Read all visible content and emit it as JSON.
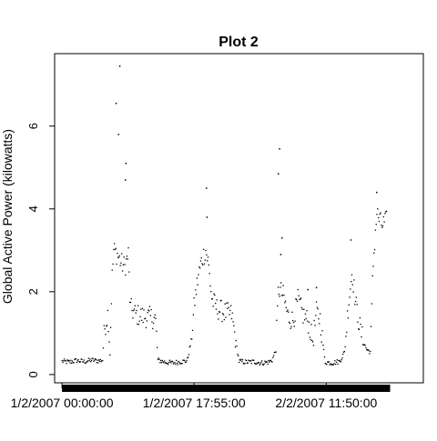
{
  "chart_data": {
    "type": "scatter",
    "title": "Plot 2",
    "xlabel": "",
    "ylabel": "Global Active Power (kilowatts)",
    "xlim": [
      -60,
      2940
    ],
    "ylim": [
      -0.2,
      7.75
    ],
    "x_ticks": [
      {
        "value": 0,
        "label": "1/2/2007 00:00:00"
      },
      {
        "value": 1075,
        "label": "1/2/2007 17:55:00"
      },
      {
        "value": 2150,
        "label": "2/2/2007 11:50:00"
      }
    ],
    "y_ticks": [
      {
        "value": 0,
        "label": "0"
      },
      {
        "value": 2,
        "label": "2"
      },
      {
        "value": 4,
        "label": "4"
      },
      {
        "value": 6,
        "label": "6"
      }
    ],
    "grid": false,
    "legend": "none",
    "point_color": "#000000",
    "x_rug": "dense black band below x axis",
    "series": [
      {
        "profile": [
          [
            0,
            0.32
          ],
          [
            60,
            0.3
          ],
          [
            120,
            0.34
          ],
          [
            180,
            0.31
          ],
          [
            240,
            0.35
          ],
          [
            300,
            0.33
          ],
          [
            330,
            0.35
          ],
          [
            345,
            1.1
          ],
          [
            375,
            1.5
          ],
          [
            390,
            0.5
          ],
          [
            405,
            2.2
          ],
          [
            420,
            3.0
          ],
          [
            450,
            2.9
          ],
          [
            480,
            2.7
          ],
          [
            510,
            2.6
          ],
          [
            540,
            2.9
          ],
          [
            555,
            1.6
          ],
          [
            600,
            1.45
          ],
          [
            660,
            1.4
          ],
          [
            720,
            1.38
          ],
          [
            760,
            1.36
          ],
          [
            780,
            0.35
          ],
          [
            840,
            0.3
          ],
          [
            900,
            0.28
          ],
          [
            960,
            0.31
          ],
          [
            1000,
            0.32
          ],
          [
            1020,
            0.35
          ],
          [
            1050,
            0.8
          ],
          [
            1080,
            1.8
          ],
          [
            1110,
            2.4
          ],
          [
            1140,
            2.8
          ],
          [
            1170,
            3.0
          ],
          [
            1190,
            2.7
          ],
          [
            1220,
            1.8
          ],
          [
            1260,
            1.6
          ],
          [
            1320,
            1.5
          ],
          [
            1380,
            1.45
          ],
          [
            1440,
            0.32
          ],
          [
            1500,
            0.3
          ],
          [
            1560,
            0.31
          ],
          [
            1620,
            0.28
          ],
          [
            1680,
            0.3
          ],
          [
            1710,
            0.35
          ],
          [
            1740,
            0.6
          ],
          [
            1760,
            2.1
          ],
          [
            1800,
            1.9
          ],
          [
            1840,
            1.4
          ],
          [
            1880,
            1.3
          ],
          [
            1920,
            1.8
          ],
          [
            1960,
            1.45
          ],
          [
            2000,
            1.3
          ],
          [
            2040,
            0.8
          ],
          [
            2070,
            1.5
          ],
          [
            2100,
            1.35
          ],
          [
            2140,
            0.3
          ],
          [
            2200,
            0.28
          ],
          [
            2260,
            0.32
          ],
          [
            2300,
            0.55
          ],
          [
            2330,
            1.7
          ],
          [
            2360,
            2.5
          ],
          [
            2390,
            1.7
          ],
          [
            2420,
            1.2
          ],
          [
            2450,
            0.8
          ],
          [
            2480,
            0.6
          ],
          [
            2510,
            0.55
          ],
          [
            2530,
            2.6
          ],
          [
            2560,
            3.9
          ],
          [
            2600,
            3.6
          ],
          [
            2640,
            3.7
          ]
        ],
        "noise": 0.12,
        "spikes": [
          {
            "x": 470,
            "y": 7.45
          },
          {
            "x": 440,
            "y": 6.55
          },
          {
            "x": 460,
            "y": 5.8
          },
          {
            "x": 520,
            "y": 5.1
          },
          {
            "x": 515,
            "y": 4.7
          },
          {
            "x": 1175,
            "y": 4.5
          },
          {
            "x": 1180,
            "y": 3.8
          },
          {
            "x": 1770,
            "y": 5.45
          },
          {
            "x": 1760,
            "y": 4.85
          },
          {
            "x": 1790,
            "y": 3.3
          },
          {
            "x": 2350,
            "y": 3.25
          },
          {
            "x": 2560,
            "y": 4.4
          },
          {
            "x": 2000,
            "y": 2.05
          },
          {
            "x": 2070,
            "y": 2.1
          },
          {
            "x": 1780,
            "y": 2.9
          }
        ]
      }
    ]
  }
}
